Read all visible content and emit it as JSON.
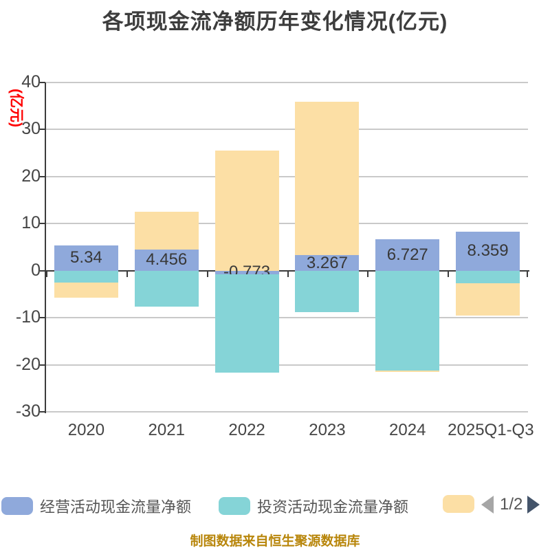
{
  "chart_data": {
    "type": "bar",
    "stacked": true,
    "title": "各项现金流净额历年变化情况(亿元)",
    "ylabel": "(亿元)",
    "categories": [
      "2020",
      "2021",
      "2022",
      "2023",
      "2024",
      "2025Q1-Q3"
    ],
    "series": [
      {
        "name": "经营活动现金流量净额",
        "color": "#8fa9db",
        "values": [
          5.34,
          4.456,
          -0.773,
          3.267,
          6.727,
          8.359
        ],
        "data_labels": [
          "5.34",
          "4.456",
          "-0.773",
          "3.267",
          "6.727",
          "8.359"
        ]
      },
      {
        "name": "投资活动现金流量净额",
        "color": "#85d4d7",
        "values": [
          -2.5,
          -7.6,
          -20.9,
          -8.8,
          -21.2,
          -2.7
        ]
      },
      {
        "name": "",
        "color": "#fcdfa5",
        "values": [
          -3.2,
          8.1,
          25.6,
          32.7,
          -0.3,
          -6.9
        ]
      }
    ],
    "yticks": [
      40,
      30,
      20,
      10,
      0,
      -10,
      -20,
      -30
    ],
    "ylim": [
      -30,
      40
    ],
    "grid": true,
    "legend_position": "bottom"
  },
  "legend": {
    "pager": {
      "current": "1/2"
    }
  },
  "footer": {
    "text": "制图数据来自恒生聚源数据库"
  },
  "colors": {
    "title": "#3d3d3d",
    "y_unit_label": "#ff0000",
    "axis_line": "#3b3b3b",
    "gridline": "#c9c9c9",
    "tick_text": "#454545",
    "footer_text": "#b8860b",
    "pager_prev": "#a6a6a6",
    "pager_next": "#44546a"
  }
}
